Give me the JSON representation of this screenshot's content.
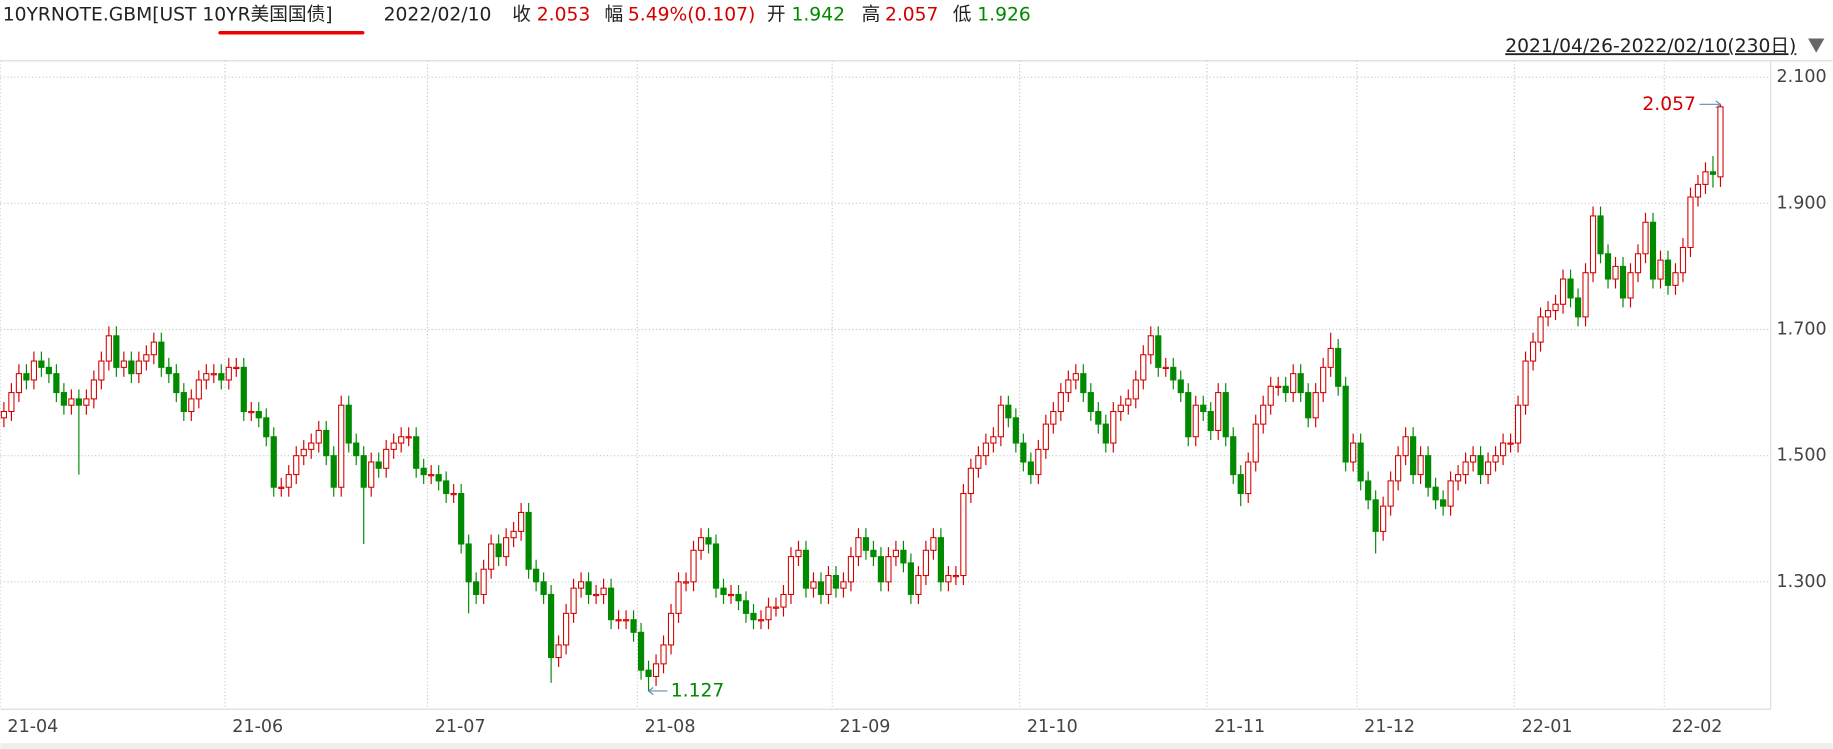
{
  "chart_data": {
    "type": "candlestick",
    "header": {
      "symbol": "10YRNOTE.GBM[UST 10YR美国国债]",
      "date": "2022/02/10",
      "close_label": "收",
      "change_label": "幅",
      "change": "5.49%(0.107)",
      "open_label": "开",
      "high_label": "高",
      "low_label": "低"
    },
    "range": "2021/04/26-2022/02/10(230日)",
    "up_color": "#d40000",
    "down_color": "#008a00",
    "ylim": [
      1.098,
      2.126
    ],
    "yticks": [
      {
        "value": 1.3,
        "label": "1.300"
      },
      {
        "value": 1.5,
        "label": "1.500"
      },
      {
        "value": 1.7,
        "label": "1.700"
      },
      {
        "value": 1.9,
        "label": "1.900"
      },
      {
        "value": 2.1,
        "label": "2.100"
      }
    ],
    "xticks": [
      {
        "value": 0,
        "label": "21-04"
      },
      {
        "value": 30,
        "label": "21-06"
      },
      {
        "value": 57,
        "label": "21-07"
      },
      {
        "value": 85,
        "label": "21-08"
      },
      {
        "value": 111,
        "label": "21-09"
      },
      {
        "value": 136,
        "label": "21-10"
      },
      {
        "value": 161,
        "label": "21-11"
      },
      {
        "value": 181,
        "label": "21-12"
      },
      {
        "value": 202,
        "label": "22-01"
      },
      {
        "value": 222,
        "label": "22-02"
      }
    ],
    "grid": true,
    "ohlc": [
      [
        1.56,
        1.585,
        1.545,
        1.57
      ],
      [
        1.57,
        1.615,
        1.555,
        1.6
      ],
      [
        1.6,
        1.645,
        1.585,
        1.63
      ],
      [
        1.63,
        1.645,
        1.605,
        1.62
      ],
      [
        1.62,
        1.665,
        1.605,
        1.65
      ],
      [
        1.65,
        1.665,
        1.625,
        1.64
      ],
      [
        1.64,
        1.655,
        1.615,
        1.63
      ],
      [
        1.63,
        1.645,
        1.585,
        1.6
      ],
      [
        1.6,
        1.615,
        1.565,
        1.58
      ],
      [
        1.58,
        1.605,
        1.565,
        1.59
      ],
      [
        1.59,
        1.605,
        1.47,
        1.58
      ],
      [
        1.58,
        1.605,
        1.565,
        1.59
      ],
      [
        1.59,
        1.635,
        1.575,
        1.62
      ],
      [
        1.62,
        1.665,
        1.605,
        1.65
      ],
      [
        1.65,
        1.705,
        1.635,
        1.69
      ],
      [
        1.69,
        1.705,
        1.625,
        1.64
      ],
      [
        1.64,
        1.665,
        1.625,
        1.65
      ],
      [
        1.65,
        1.665,
        1.615,
        1.63
      ],
      [
        1.63,
        1.665,
        1.615,
        1.65
      ],
      [
        1.65,
        1.675,
        1.635,
        1.66
      ],
      [
        1.66,
        1.695,
        1.645,
        1.68
      ],
      [
        1.68,
        1.695,
        1.625,
        1.64
      ],
      [
        1.64,
        1.655,
        1.615,
        1.63
      ],
      [
        1.63,
        1.645,
        1.585,
        1.6
      ],
      [
        1.6,
        1.615,
        1.555,
        1.57
      ],
      [
        1.57,
        1.605,
        1.555,
        1.59
      ],
      [
        1.59,
        1.635,
        1.575,
        1.62
      ],
      [
        1.62,
        1.645,
        1.605,
        1.63
      ],
      [
        1.63,
        1.645,
        1.615,
        1.63
      ],
      [
        1.63,
        1.645,
        1.605,
        1.62
      ],
      [
        1.62,
        1.655,
        1.605,
        1.64
      ],
      [
        1.64,
        1.655,
        1.625,
        1.64
      ],
      [
        1.64,
        1.655,
        1.555,
        1.57
      ],
      [
        1.57,
        1.585,
        1.555,
        1.57
      ],
      [
        1.57,
        1.585,
        1.545,
        1.56
      ],
      [
        1.56,
        1.575,
        1.515,
        1.53
      ],
      [
        1.53,
        1.545,
        1.435,
        1.45
      ],
      [
        1.45,
        1.465,
        1.435,
        1.45
      ],
      [
        1.45,
        1.485,
        1.435,
        1.47
      ],
      [
        1.47,
        1.515,
        1.455,
        1.5
      ],
      [
        1.5,
        1.525,
        1.485,
        1.51
      ],
      [
        1.51,
        1.535,
        1.495,
        1.52
      ],
      [
        1.52,
        1.555,
        1.505,
        1.54
      ],
      [
        1.54,
        1.555,
        1.485,
        1.5
      ],
      [
        1.5,
        1.515,
        1.435,
        1.45
      ],
      [
        1.45,
        1.595,
        1.435,
        1.58
      ],
      [
        1.58,
        1.595,
        1.505,
        1.52
      ],
      [
        1.52,
        1.535,
        1.485,
        1.5
      ],
      [
        1.5,
        1.515,
        1.36,
        1.45
      ],
      [
        1.45,
        1.505,
        1.435,
        1.49
      ],
      [
        1.49,
        1.505,
        1.465,
        1.48
      ],
      [
        1.48,
        1.525,
        1.465,
        1.51
      ],
      [
        1.51,
        1.535,
        1.495,
        1.52
      ],
      [
        1.52,
        1.545,
        1.505,
        1.53
      ],
      [
        1.53,
        1.545,
        1.515,
        1.53
      ],
      [
        1.53,
        1.545,
        1.465,
        1.48
      ],
      [
        1.48,
        1.495,
        1.455,
        1.47
      ],
      [
        1.47,
        1.485,
        1.455,
        1.47
      ],
      [
        1.47,
        1.485,
        1.445,
        1.46
      ],
      [
        1.46,
        1.475,
        1.425,
        1.44
      ],
      [
        1.44,
        1.455,
        1.425,
        1.44
      ],
      [
        1.44,
        1.455,
        1.345,
        1.36
      ],
      [
        1.36,
        1.375,
        1.25,
        1.3
      ],
      [
        1.3,
        1.315,
        1.265,
        1.28
      ],
      [
        1.28,
        1.335,
        1.265,
        1.32
      ],
      [
        1.32,
        1.375,
        1.305,
        1.36
      ],
      [
        1.36,
        1.375,
        1.325,
        1.34
      ],
      [
        1.34,
        1.385,
        1.325,
        1.37
      ],
      [
        1.37,
        1.395,
        1.355,
        1.38
      ],
      [
        1.38,
        1.425,
        1.365,
        1.41
      ],
      [
        1.41,
        1.425,
        1.305,
        1.32
      ],
      [
        1.32,
        1.335,
        1.285,
        1.3
      ],
      [
        1.3,
        1.315,
        1.265,
        1.28
      ],
      [
        1.28,
        1.295,
        1.14,
        1.18
      ],
      [
        1.18,
        1.215,
        1.165,
        1.2
      ],
      [
        1.2,
        1.265,
        1.185,
        1.25
      ],
      [
        1.25,
        1.305,
        1.235,
        1.29
      ],
      [
        1.29,
        1.315,
        1.275,
        1.3
      ],
      [
        1.3,
        1.315,
        1.265,
        1.28
      ],
      [
        1.28,
        1.295,
        1.265,
        1.28
      ],
      [
        1.28,
        1.305,
        1.265,
        1.29
      ],
      [
        1.29,
        1.305,
        1.225,
        1.24
      ],
      [
        1.24,
        1.255,
        1.225,
        1.24
      ],
      [
        1.24,
        1.255,
        1.225,
        1.24
      ],
      [
        1.24,
        1.255,
        1.205,
        1.22
      ],
      [
        1.22,
        1.235,
        1.145,
        1.16
      ],
      [
        1.16,
        1.175,
        1.127,
        1.15
      ],
      [
        1.15,
        1.185,
        1.135,
        1.17
      ],
      [
        1.17,
        1.215,
        1.155,
        1.2
      ],
      [
        1.2,
        1.265,
        1.185,
        1.25
      ],
      [
        1.25,
        1.315,
        1.235,
        1.3
      ],
      [
        1.3,
        1.315,
        1.285,
        1.3
      ],
      [
        1.3,
        1.365,
        1.285,
        1.35
      ],
      [
        1.35,
        1.385,
        1.335,
        1.37
      ],
      [
        1.37,
        1.385,
        1.345,
        1.36
      ],
      [
        1.36,
        1.375,
        1.275,
        1.29
      ],
      [
        1.29,
        1.305,
        1.265,
        1.28
      ],
      [
        1.28,
        1.295,
        1.265,
        1.28
      ],
      [
        1.28,
        1.295,
        1.255,
        1.27
      ],
      [
        1.27,
        1.285,
        1.235,
        1.25
      ],
      [
        1.25,
        1.265,
        1.225,
        1.24
      ],
      [
        1.24,
        1.255,
        1.225,
        1.24
      ],
      [
        1.24,
        1.275,
        1.225,
        1.26
      ],
      [
        1.26,
        1.275,
        1.245,
        1.26
      ],
      [
        1.26,
        1.295,
        1.245,
        1.28
      ],
      [
        1.28,
        1.355,
        1.265,
        1.34
      ],
      [
        1.34,
        1.365,
        1.325,
        1.35
      ],
      [
        1.35,
        1.365,
        1.275,
        1.29
      ],
      [
        1.29,
        1.315,
        1.275,
        1.3
      ],
      [
        1.3,
        1.315,
        1.265,
        1.28
      ],
      [
        1.28,
        1.325,
        1.265,
        1.31
      ],
      [
        1.31,
        1.325,
        1.275,
        1.29
      ],
      [
        1.29,
        1.315,
        1.275,
        1.3
      ],
      [
        1.3,
        1.355,
        1.285,
        1.34
      ],
      [
        1.34,
        1.385,
        1.325,
        1.37
      ],
      [
        1.37,
        1.385,
        1.335,
        1.35
      ],
      [
        1.35,
        1.365,
        1.325,
        1.34
      ],
      [
        1.34,
        1.355,
        1.285,
        1.3
      ],
      [
        1.3,
        1.355,
        1.285,
        1.34
      ],
      [
        1.34,
        1.365,
        1.325,
        1.35
      ],
      [
        1.35,
        1.365,
        1.315,
        1.33
      ],
      [
        1.33,
        1.345,
        1.265,
        1.28
      ],
      [
        1.28,
        1.325,
        1.265,
        1.31
      ],
      [
        1.31,
        1.365,
        1.295,
        1.35
      ],
      [
        1.35,
        1.385,
        1.335,
        1.37
      ],
      [
        1.37,
        1.385,
        1.285,
        1.3
      ],
      [
        1.3,
        1.325,
        1.285,
        1.31
      ],
      [
        1.31,
        1.325,
        1.295,
        1.31
      ],
      [
        1.31,
        1.455,
        1.295,
        1.44
      ],
      [
        1.44,
        1.495,
        1.425,
        1.48
      ],
      [
        1.48,
        1.515,
        1.465,
        1.5
      ],
      [
        1.5,
        1.535,
        1.485,
        1.52
      ],
      [
        1.52,
        1.545,
        1.505,
        1.53
      ],
      [
        1.53,
        1.595,
        1.515,
        1.58
      ],
      [
        1.58,
        1.595,
        1.545,
        1.56
      ],
      [
        1.56,
        1.575,
        1.505,
        1.52
      ],
      [
        1.52,
        1.535,
        1.475,
        1.49
      ],
      [
        1.49,
        1.505,
        1.455,
        1.47
      ],
      [
        1.47,
        1.525,
        1.455,
        1.51
      ],
      [
        1.51,
        1.565,
        1.495,
        1.55
      ],
      [
        1.55,
        1.585,
        1.535,
        1.57
      ],
      [
        1.57,
        1.615,
        1.555,
        1.6
      ],
      [
        1.6,
        1.635,
        1.585,
        1.62
      ],
      [
        1.62,
        1.645,
        1.605,
        1.63
      ],
      [
        1.63,
        1.645,
        1.585,
        1.6
      ],
      [
        1.6,
        1.615,
        1.555,
        1.57
      ],
      [
        1.57,
        1.585,
        1.535,
        1.55
      ],
      [
        1.55,
        1.565,
        1.505,
        1.52
      ],
      [
        1.52,
        1.585,
        1.505,
        1.57
      ],
      [
        1.57,
        1.595,
        1.555,
        1.58
      ],
      [
        1.58,
        1.605,
        1.565,
        1.59
      ],
      [
        1.59,
        1.635,
        1.575,
        1.62
      ],
      [
        1.62,
        1.675,
        1.605,
        1.66
      ],
      [
        1.66,
        1.705,
        1.645,
        1.69
      ],
      [
        1.69,
        1.705,
        1.625,
        1.64
      ],
      [
        1.64,
        1.655,
        1.625,
        1.64
      ],
      [
        1.64,
        1.655,
        1.605,
        1.62
      ],
      [
        1.62,
        1.635,
        1.585,
        1.6
      ],
      [
        1.6,
        1.615,
        1.515,
        1.53
      ],
      [
        1.53,
        1.595,
        1.515,
        1.58
      ],
      [
        1.58,
        1.595,
        1.555,
        1.57
      ],
      [
        1.57,
        1.585,
        1.525,
        1.54
      ],
      [
        1.54,
        1.615,
        1.525,
        1.6
      ],
      [
        1.6,
        1.615,
        1.515,
        1.53
      ],
      [
        1.53,
        1.545,
        1.455,
        1.47
      ],
      [
        1.47,
        1.485,
        1.42,
        1.44
      ],
      [
        1.44,
        1.505,
        1.425,
        1.49
      ],
      [
        1.49,
        1.565,
        1.475,
        1.55
      ],
      [
        1.55,
        1.595,
        1.535,
        1.58
      ],
      [
        1.58,
        1.625,
        1.565,
        1.61
      ],
      [
        1.61,
        1.625,
        1.595,
        1.61
      ],
      [
        1.61,
        1.625,
        1.585,
        1.6
      ],
      [
        1.6,
        1.645,
        1.585,
        1.63
      ],
      [
        1.63,
        1.645,
        1.585,
        1.6
      ],
      [
        1.6,
        1.615,
        1.545,
        1.56
      ],
      [
        1.56,
        1.615,
        1.545,
        1.6
      ],
      [
        1.6,
        1.655,
        1.585,
        1.64
      ],
      [
        1.64,
        1.695,
        1.625,
        1.67
      ],
      [
        1.67,
        1.685,
        1.595,
        1.61
      ],
      [
        1.61,
        1.625,
        1.475,
        1.49
      ],
      [
        1.49,
        1.535,
        1.475,
        1.52
      ],
      [
        1.52,
        1.535,
        1.445,
        1.46
      ],
      [
        1.46,
        1.475,
        1.415,
        1.43
      ],
      [
        1.43,
        1.445,
        1.345,
        1.38
      ],
      [
        1.38,
        1.435,
        1.365,
        1.42
      ],
      [
        1.42,
        1.475,
        1.405,
        1.46
      ],
      [
        1.46,
        1.515,
        1.445,
        1.5
      ],
      [
        1.5,
        1.545,
        1.485,
        1.53
      ],
      [
        1.53,
        1.545,
        1.455,
        1.47
      ],
      [
        1.47,
        1.515,
        1.455,
        1.5
      ],
      [
        1.5,
        1.515,
        1.435,
        1.45
      ],
      [
        1.45,
        1.465,
        1.415,
        1.43
      ],
      [
        1.43,
        1.445,
        1.405,
        1.42
      ],
      [
        1.42,
        1.475,
        1.405,
        1.46
      ],
      [
        1.46,
        1.485,
        1.445,
        1.47
      ],
      [
        1.47,
        1.505,
        1.455,
        1.49
      ],
      [
        1.49,
        1.515,
        1.475,
        1.5
      ],
      [
        1.5,
        1.515,
        1.455,
        1.47
      ],
      [
        1.47,
        1.505,
        1.455,
        1.49
      ],
      [
        1.49,
        1.515,
        1.475,
        1.5
      ],
      [
        1.5,
        1.535,
        1.485,
        1.52
      ],
      [
        1.52,
        1.535,
        1.505,
        1.52
      ],
      [
        1.52,
        1.595,
        1.505,
        1.58
      ],
      [
        1.58,
        1.665,
        1.565,
        1.65
      ],
      [
        1.65,
        1.695,
        1.635,
        1.68
      ],
      [
        1.68,
        1.735,
        1.665,
        1.72
      ],
      [
        1.72,
        1.745,
        1.705,
        1.73
      ],
      [
        1.73,
        1.755,
        1.715,
        1.74
      ],
      [
        1.74,
        1.795,
        1.725,
        1.78
      ],
      [
        1.78,
        1.795,
        1.735,
        1.75
      ],
      [
        1.75,
        1.765,
        1.705,
        1.72
      ],
      [
        1.72,
        1.805,
        1.705,
        1.79
      ],
      [
        1.79,
        1.895,
        1.775,
        1.88
      ],
      [
        1.88,
        1.895,
        1.805,
        1.82
      ],
      [
        1.82,
        1.835,
        1.765,
        1.78
      ],
      [
        1.78,
        1.815,
        1.765,
        1.8
      ],
      [
        1.8,
        1.815,
        1.735,
        1.75
      ],
      [
        1.75,
        1.805,
        1.735,
        1.79
      ],
      [
        1.79,
        1.835,
        1.775,
        1.82
      ],
      [
        1.82,
        1.885,
        1.805,
        1.87
      ],
      [
        1.87,
        1.885,
        1.765,
        1.78
      ],
      [
        1.78,
        1.825,
        1.765,
        1.81
      ],
      [
        1.81,
        1.825,
        1.755,
        1.77
      ],
      [
        1.77,
        1.805,
        1.755,
        1.79
      ],
      [
        1.79,
        1.845,
        1.775,
        1.83
      ],
      [
        1.83,
        1.925,
        1.815,
        1.91
      ],
      [
        1.91,
        1.945,
        1.895,
        1.93
      ],
      [
        1.93,
        1.965,
        1.915,
        1.95
      ],
      [
        1.95,
        1.975,
        1.925,
        1.946
      ],
      [
        1.942,
        2.057,
        1.926,
        2.053
      ]
    ]
  }
}
